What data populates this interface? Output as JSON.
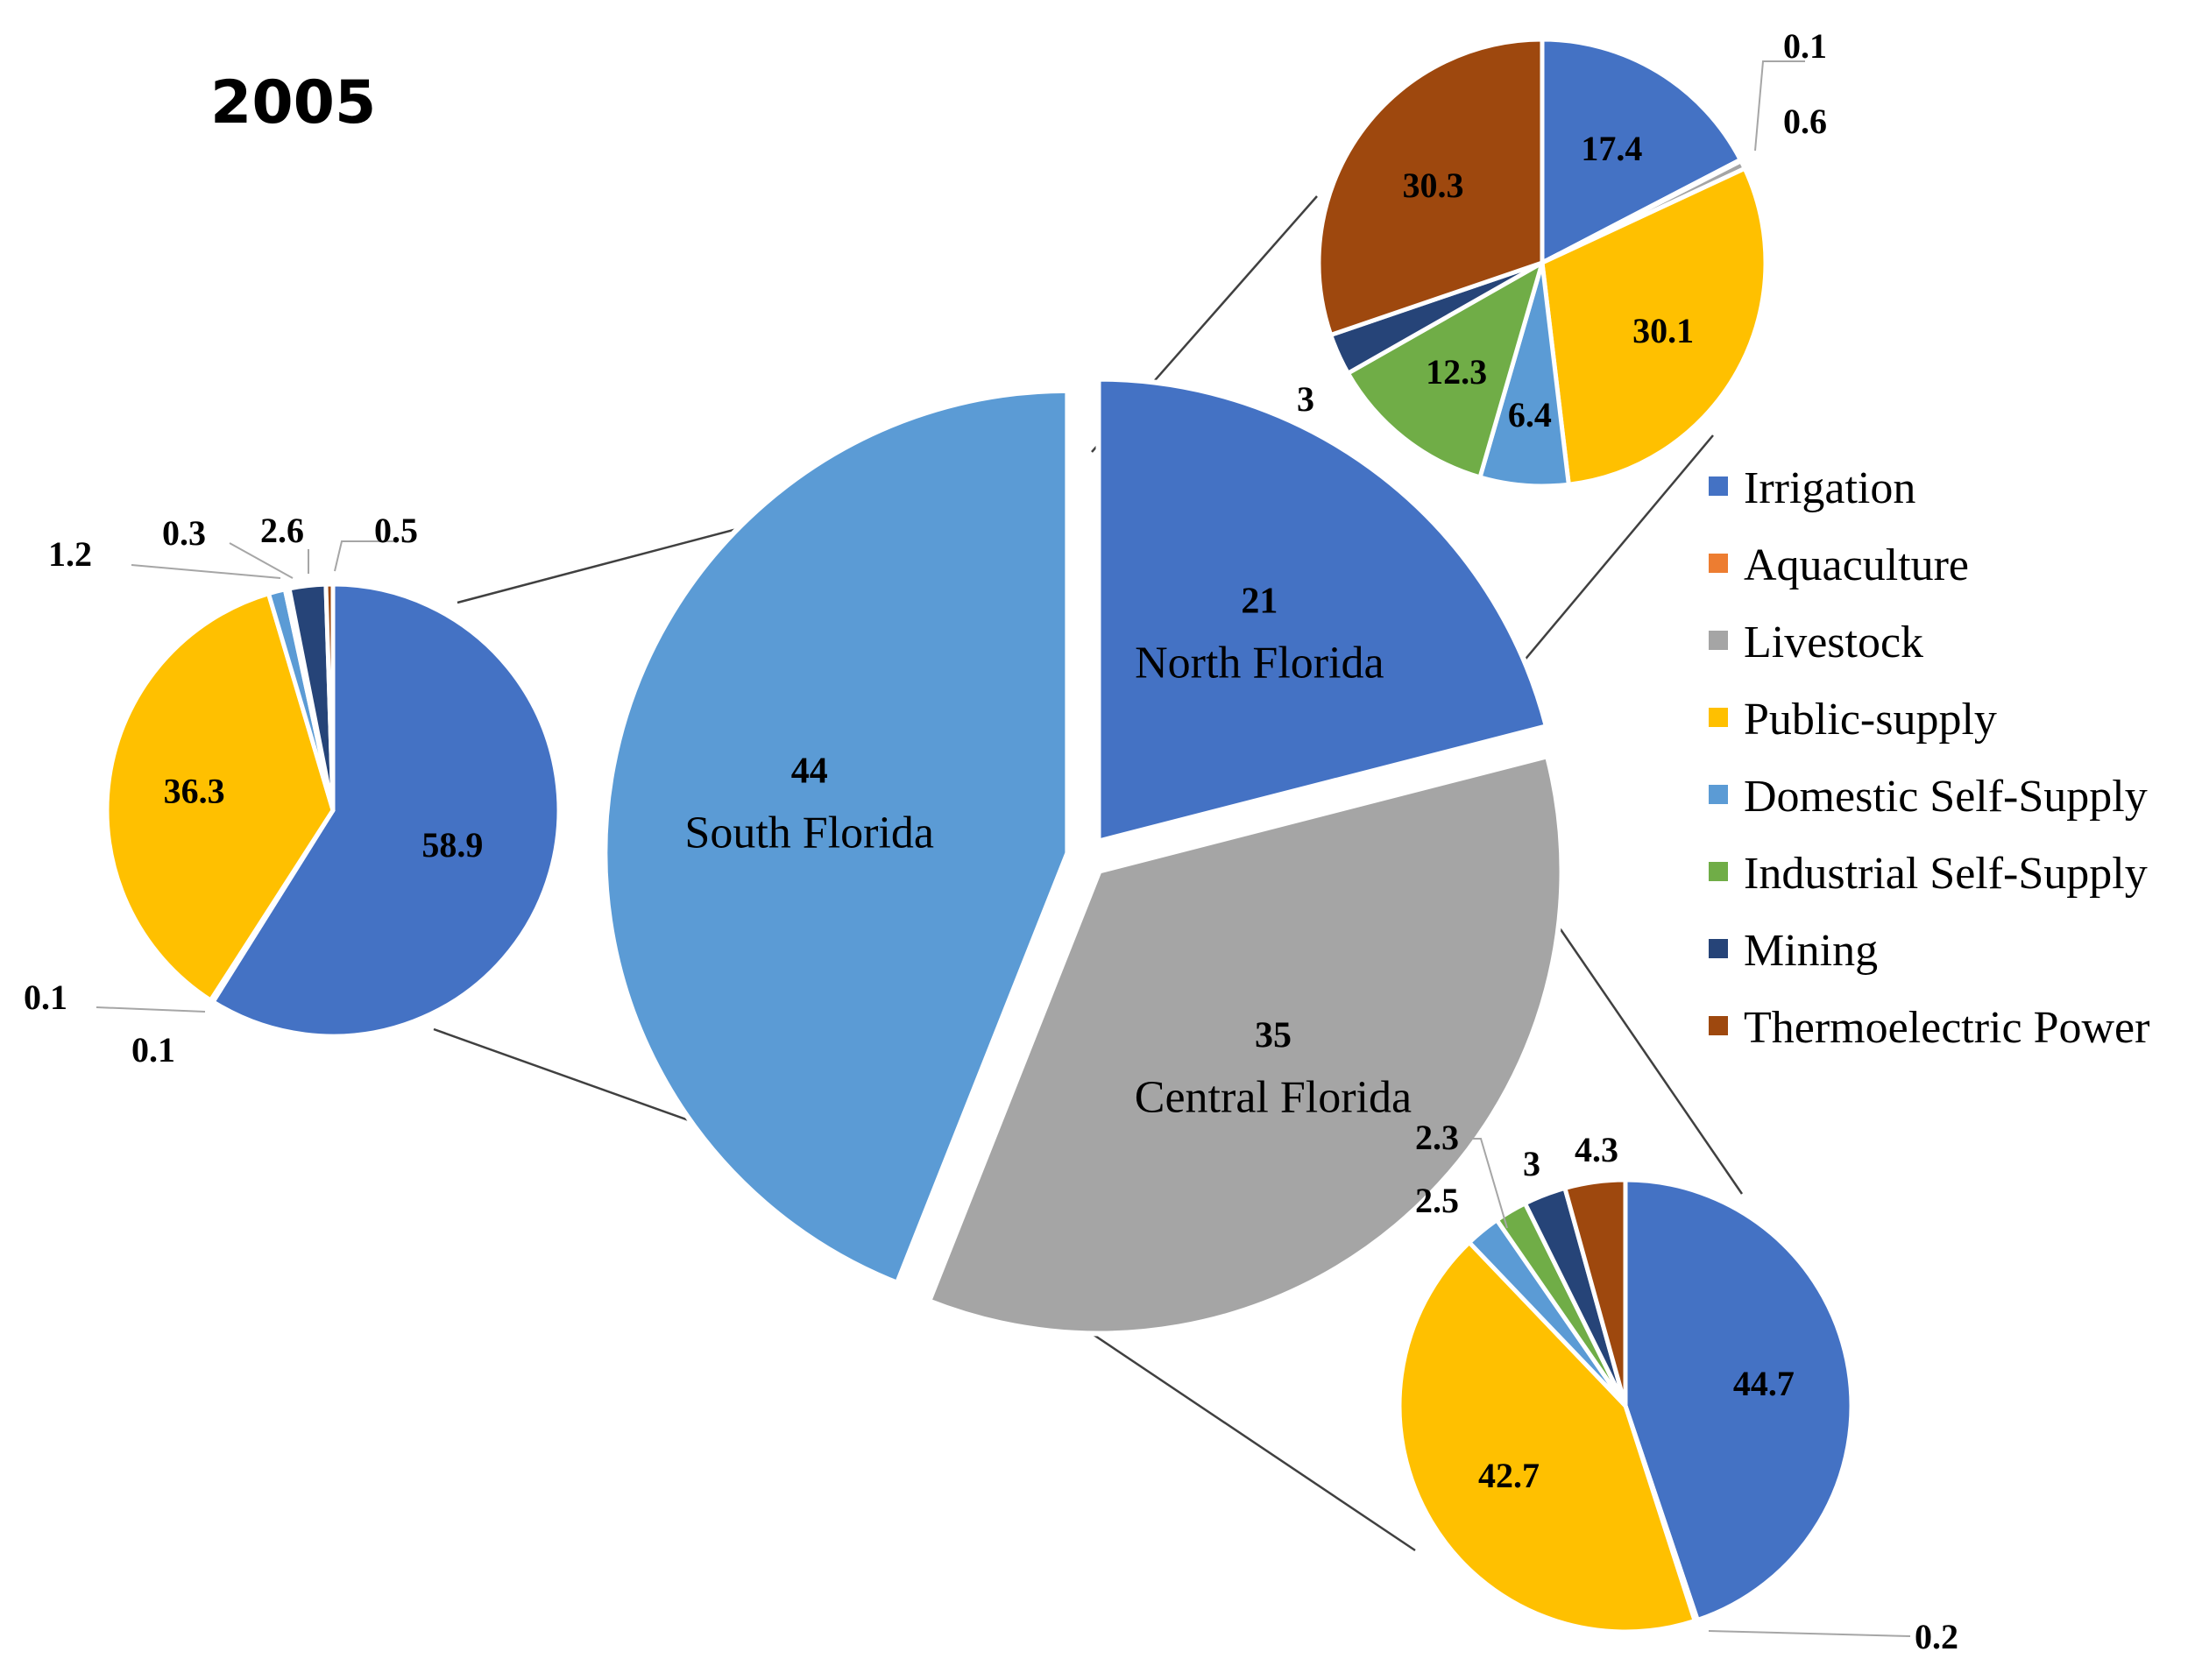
{
  "title": "2005",
  "colors": {
    "Irrigation": "#4472C4",
    "Aquaculture": "#ED7D31",
    "Livestock": "#A5A5A5",
    "Public-supply": "#FFC000",
    "Domestic Self-Supply": "#5B9BD5",
    "Industrial Self-Supply": "#70AD47",
    "Mining": "#264478",
    "Thermoelectric Power": "#9E480E"
  },
  "legend": [
    "Irrigation",
    "Aquaculture",
    "Livestock",
    "Public-supply",
    "Domestic Self-Supply",
    "Industrial Self-Supply",
    "Mining",
    "Thermoelectric Power"
  ],
  "chart_data": [
    {
      "type": "pie",
      "name": "regions",
      "title": "2005",
      "slices": [
        {
          "region": "North Florida",
          "value": 21,
          "color": "#4472C4"
        },
        {
          "region": "Central Florida",
          "value": 35,
          "color": "#A5A5A5"
        },
        {
          "region": "South Florida",
          "value": 44,
          "color": "#5B9BD5"
        }
      ]
    },
    {
      "type": "pie",
      "name": "North Florida",
      "categories": [
        "Irrigation",
        "Aquaculture",
        "Livestock",
        "Public-supply",
        "Domestic Self-Supply",
        "Industrial Self-Supply",
        "Mining",
        "Thermoelectric Power"
      ],
      "values": [
        17.4,
        0.1,
        0.6,
        30.1,
        6.4,
        12.3,
        3,
        30.3
      ],
      "labels": [
        "17.4",
        "0.1",
        "0.6",
        "30.1",
        "6.4",
        "12.3",
        "3",
        "30.3"
      ]
    },
    {
      "type": "pie",
      "name": "Central Florida",
      "categories": [
        "Irrigation",
        "Aquaculture",
        "Livestock",
        "Public-supply",
        "Domestic Self-Supply",
        "Industrial Self-Supply",
        "Mining",
        "Thermoelectric Power"
      ],
      "values": [
        44.7,
        0.2,
        0,
        42.7,
        2.5,
        2.3,
        3,
        4.3
      ],
      "labels": [
        "44.7",
        "0.2",
        "",
        "42.7",
        "2.5",
        "2.3",
        "3",
        "4.3"
      ]
    },
    {
      "type": "pie",
      "name": "South Florida",
      "categories": [
        "Irrigation",
        "Aquaculture",
        "Livestock",
        "Public-supply",
        "Domestic Self-Supply",
        "Industrial Self-Supply",
        "Mining",
        "Thermoelectric Power"
      ],
      "values": [
        58.9,
        0.1,
        0.1,
        36.3,
        1.2,
        0.3,
        2.6,
        0.5
      ],
      "labels": [
        "58.9",
        "0.1",
        "0.1",
        "36.3",
        "1.2",
        "0.3",
        "2.6",
        "0.5"
      ]
    }
  ]
}
